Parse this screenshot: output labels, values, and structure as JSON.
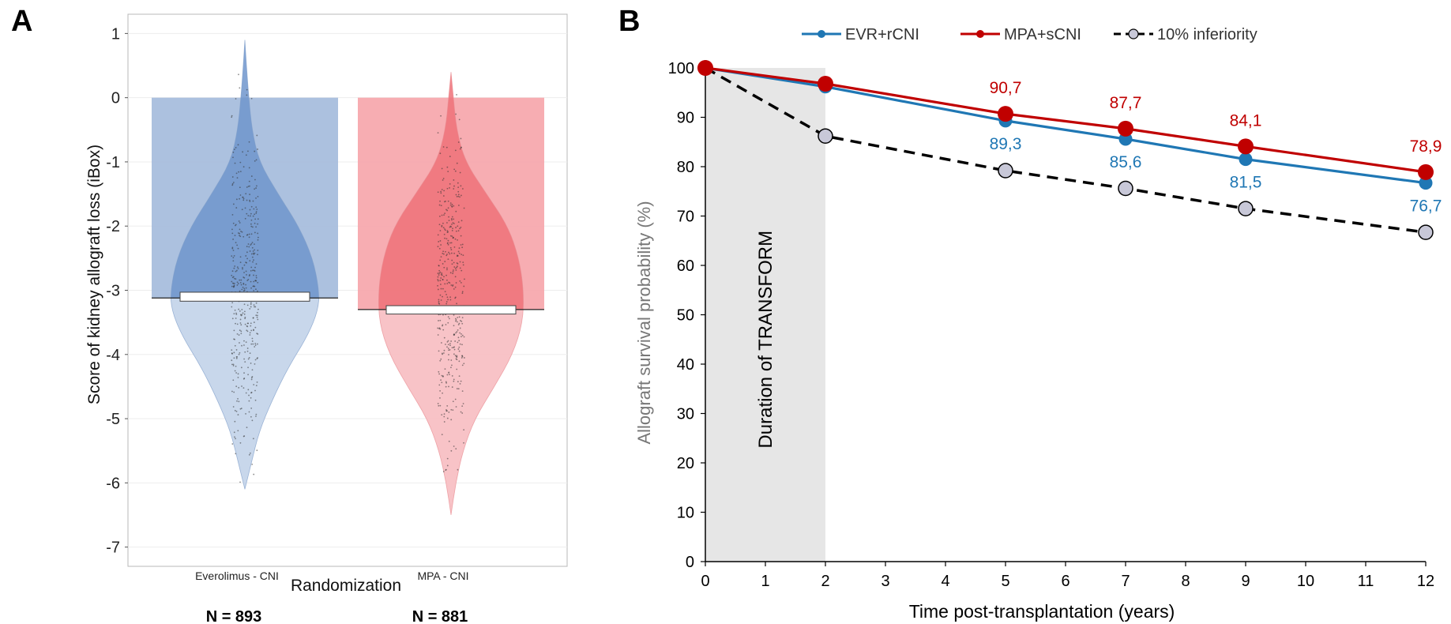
{
  "panels": {
    "a_letter": "A",
    "b_letter": "B"
  },
  "chart_data": [
    {
      "panel": "A",
      "type": "violin-bar",
      "ylabel": "Score of kidney allograft loss (iBox)",
      "xlabel": "Randomization",
      "ylim": [
        -7.3,
        1.3
      ],
      "yticks": [
        1,
        0,
        -1,
        -2,
        -3,
        -4,
        -5,
        -6,
        -7
      ],
      "ytick_labels": [
        "1",
        "0",
        "-1",
        "-2",
        "-3",
        "-4",
        "-5",
        "-6",
        "-7"
      ],
      "grid": true,
      "groups": [
        {
          "name": "Everolimus - CNI",
          "n_label": "N = 893",
          "mean": -3.12,
          "ci": [
            -3.17,
            -3.03
          ],
          "violin_min": -6.1,
          "violin_max": 0.9,
          "bar_color": "#a8bedd",
          "violin_upper_color": "#6f95cc",
          "violin_lower_color": "#c5d5ea",
          "violin_profile": [
            [
              0.9,
              0.0
            ],
            [
              0.5,
              0.02
            ],
            [
              0.0,
              0.05
            ],
            [
              -0.5,
              0.09
            ],
            [
              -1.0,
              0.18
            ],
            [
              -1.5,
              0.42
            ],
            [
              -2.0,
              0.68
            ],
            [
              -2.5,
              0.86
            ],
            [
              -3.0,
              0.94
            ],
            [
              -3.3,
              0.93
            ],
            [
              -3.7,
              0.8
            ],
            [
              -4.2,
              0.55
            ],
            [
              -4.7,
              0.35
            ],
            [
              -5.2,
              0.18
            ],
            [
              -5.7,
              0.08
            ],
            [
              -6.1,
              0.0
            ]
          ]
        },
        {
          "name": "MPA - CNI",
          "n_label": "N = 881",
          "mean": -3.3,
          "ci": [
            -3.37,
            -3.24
          ],
          "violin_min": -6.5,
          "violin_max": 0.4,
          "bar_color": "#f7a9ae",
          "violin_upper_color": "#ef7178",
          "violin_lower_color": "#f8c0c4",
          "violin_profile": [
            [
              0.4,
              0.0
            ],
            [
              0.0,
              0.03
            ],
            [
              -0.5,
              0.07
            ],
            [
              -1.0,
              0.18
            ],
            [
              -1.5,
              0.45
            ],
            [
              -2.0,
              0.72
            ],
            [
              -2.5,
              0.86
            ],
            [
              -3.0,
              0.92
            ],
            [
              -3.5,
              0.91
            ],
            [
              -4.0,
              0.78
            ],
            [
              -4.5,
              0.55
            ],
            [
              -5.0,
              0.3
            ],
            [
              -5.5,
              0.15
            ],
            [
              -6.0,
              0.06
            ],
            [
              -6.5,
              0.0
            ]
          ]
        }
      ]
    },
    {
      "panel": "B",
      "type": "line",
      "ylabel": "Allograft survival probability (%)",
      "xlabel": "Time post-transplantation (years)",
      "xlim": [
        0,
        12
      ],
      "ylim": [
        0,
        100
      ],
      "xticks": [
        0,
        1,
        2,
        3,
        4,
        5,
        6,
        7,
        8,
        9,
        10,
        11,
        12
      ],
      "yticks": [
        0,
        10,
        20,
        30,
        40,
        50,
        60,
        70,
        80,
        90,
        100
      ],
      "legend_position": "top",
      "shaded_region": {
        "x_from": 0,
        "x_to": 2,
        "label": "Duration of TRANSFORM",
        "color": "#e6e6e6"
      },
      "series": [
        {
          "name": "EVR+rCNI",
          "color": "#1f77b4",
          "style": "solid",
          "x": [
            0,
            2,
            5,
            7,
            9,
            12
          ],
          "y": [
            100,
            96.2,
            89.3,
            85.6,
            81.5,
            76.7
          ],
          "data_labels": [
            "",
            "",
            "89,3",
            "85,6",
            "81,5",
            "76,7"
          ]
        },
        {
          "name": "MPA+sCNI",
          "color": "#c00000",
          "style": "solid",
          "x": [
            0,
            2,
            5,
            7,
            9,
            12
          ],
          "y": [
            100,
            96.8,
            90.7,
            87.7,
            84.1,
            78.9
          ],
          "data_labels": [
            "",
            "",
            "90,7",
            "87,7",
            "84,1",
            "78,9"
          ]
        },
        {
          "name": "10% inferiority",
          "color": "#000000",
          "marker_fill": "#c8c8d8",
          "style": "dashed",
          "x": [
            0,
            2,
            5,
            7,
            9,
            12
          ],
          "y": [
            100,
            86.2,
            79.2,
            75.6,
            71.5,
            66.7
          ],
          "data_labels": [
            "",
            "",
            "",
            "",
            "",
            ""
          ]
        }
      ]
    }
  ]
}
